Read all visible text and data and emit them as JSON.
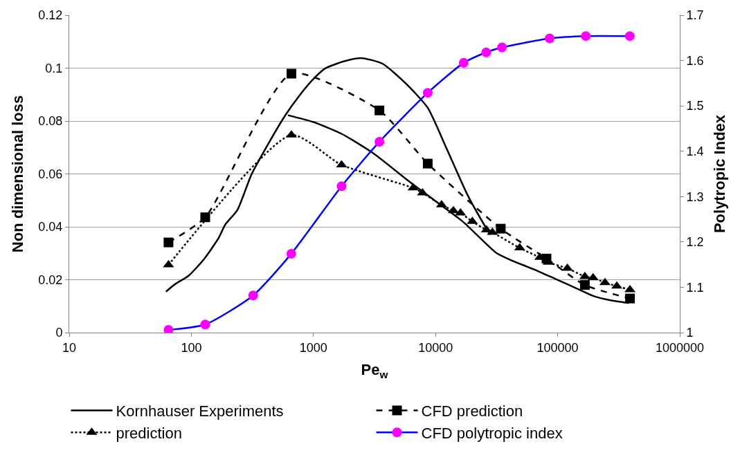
{
  "chart_data": {
    "type": "line",
    "xlabel": "Pe$_{w}$",
    "ylabel": "Non dimensional loss",
    "y2label": "Polytropic Index",
    "log": "x",
    "xlim": [
      10,
      1000000
    ],
    "xticks": [
      10,
      100,
      1000,
      10000,
      100000,
      1000000
    ],
    "ylim": [
      0,
      0.12
    ],
    "yticks": [
      0,
      0.02,
      0.04,
      0.06,
      0.08,
      0.1,
      0.12
    ],
    "y2lim": [
      1,
      1.7
    ],
    "y2ticks": [
      1,
      1.1,
      1.2,
      1.3,
      1.4,
      1.5,
      1.6,
      1.7
    ],
    "grid": "y",
    "legend": "bottom",
    "series": [
      {
        "name": "Kornhauser Experiments",
        "color": "#000000",
        "marker": "none",
        "line_style": "solid",
        "x": [
          62,
          74,
          95,
          127,
          166,
          190,
          238,
          311,
          407,
          583,
          764,
          1000,
          1250,
          1790,
          2450,
          3670,
          5760,
          8630,
          12200,
          18300,
          26100,
          28000,
          null,
          618,
          1000,
          1710,
          3070,
          5760,
          8560,
          16700,
          31300,
          40900,
          64000,
          95700,
          137000,
          195000,
          280000,
          383000
        ],
        "values": [
          0.0155,
          0.0184,
          0.0215,
          0.0278,
          0.0355,
          0.0409,
          0.0463,
          0.0598,
          0.0697,
          0.0819,
          0.0895,
          0.0959,
          0.0999,
          0.1026,
          0.1038,
          0.1017,
          0.094,
          0.085,
          0.07,
          0.052,
          0.0393,
          0.037,
          null,
          0.0822,
          0.0796,
          0.0751,
          0.0679,
          0.058,
          0.052,
          0.042,
          0.0302,
          0.0275,
          0.0239,
          0.0203,
          0.0171,
          0.0139,
          0.0121,
          0.0112
        ]
      },
      {
        "name": "CFD prediction",
        "color": "#000000",
        "marker": "square",
        "line_style": "dashed",
        "x": [
          65,
          130,
          660,
          3470,
          8630,
          34200,
          81000,
          167000,
          391000
        ],
        "values": [
          0.0341,
          0.0436,
          0.0979,
          0.084,
          0.0639,
          0.0393,
          0.028,
          0.018,
          0.0129
        ]
      },
      {
        "name": "prediction",
        "color": "#000000",
        "marker": "triangle",
        "line_style": "dotted",
        "x": [
          65,
          660,
          1700,
          6550,
          7820,
          11200,
          14000,
          16000,
          20000,
          26100,
          29200,
          48900,
          71400,
          83600,
          120000,
          167000,
          195000,
          244000,
          305000,
          391000
        ],
        "values": [
          0.0256,
          0.0747,
          0.0634,
          0.0547,
          0.0528,
          0.0483,
          0.0461,
          0.0452,
          0.042,
          0.0388,
          0.0379,
          0.032,
          0.0284,
          0.0266,
          0.0243,
          0.0212,
          0.0207,
          0.0189,
          0.0176,
          0.0162
        ]
      },
      {
        "name": "CFD polytropic index",
        "color": "#0000ff",
        "colors": [
          "#ff00ff",
          "#ff00ff",
          "#ff00ff",
          "#ff00ff",
          "#ff00ff",
          "#ff00ff",
          "#ff00ff",
          "#ff00ff",
          "#ff00ff",
          "#ff00ff",
          "#ff00ff",
          "#ff00ff",
          "#ff00ff"
        ],
        "marker": "circle",
        "line_style": "solid",
        "axis": "y2",
        "x": [
          65,
          130,
          321,
          659,
          1700,
          3470,
          8630,
          17000,
          26000,
          35000,
          86000,
          170000,
          390000
        ],
        "values": [
          1.006,
          1.018,
          1.082,
          1.174,
          1.323,
          1.421,
          1.529,
          1.595,
          1.618,
          1.629,
          1.649,
          1.654,
          1.654
        ]
      }
    ]
  }
}
